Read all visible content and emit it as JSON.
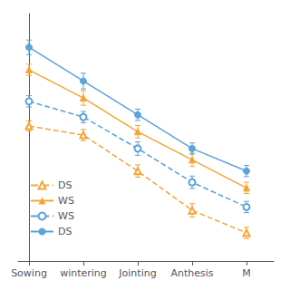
{
  "chart_data": {
    "type": "line",
    "x": [
      0,
      1,
      2,
      3,
      4
    ],
    "xlim": [
      -0.2,
      4.5
    ],
    "xticks": [
      {
        "value": 0,
        "label": "Sowing"
      },
      {
        "value": 1,
        "label": "wintering"
      },
      {
        "value": 2,
        "label": "Jointing"
      },
      {
        "value": 3,
        "label": "Anthesis"
      },
      {
        "value": 4,
        "label": "M"
      }
    ],
    "ylim": [
      5,
      27
    ],
    "tick_labels": "x",
    "grid": false,
    "legend": "lower left",
    "series": [
      {
        "name": "DS",
        "color": "#F4A535",
        "line_style": "dashed",
        "marker": "triangle-open",
        "values": [
          17.0,
          16.2,
          13.0,
          9.5,
          7.5
        ],
        "errors": [
          0.45,
          0.5,
          0.55,
          0.6,
          0.5
        ]
      },
      {
        "name": "WS",
        "color": "#F4A535",
        "line_style": "solid",
        "marker": "triangle",
        "values": [
          22.0,
          19.5,
          16.5,
          14.0,
          11.5
        ],
        "errors": [
          0.5,
          0.65,
          0.55,
          0.6,
          0.5
        ]
      },
      {
        "name": "WS",
        "color": "#5BA3D9",
        "line_style": "dashed",
        "marker": "circle-open",
        "values": [
          19.2,
          17.8,
          15.0,
          12.0,
          9.8
        ],
        "errors": [
          0.5,
          0.5,
          0.6,
          0.55,
          0.5
        ]
      },
      {
        "name": "DS",
        "color": "#5BA3D9",
        "line_style": "solid",
        "marker": "circle",
        "values": [
          24.0,
          21.0,
          18.0,
          15.0,
          13.0
        ],
        "errors": [
          0.65,
          0.7,
          0.5,
          0.5,
          0.5
        ]
      }
    ]
  }
}
